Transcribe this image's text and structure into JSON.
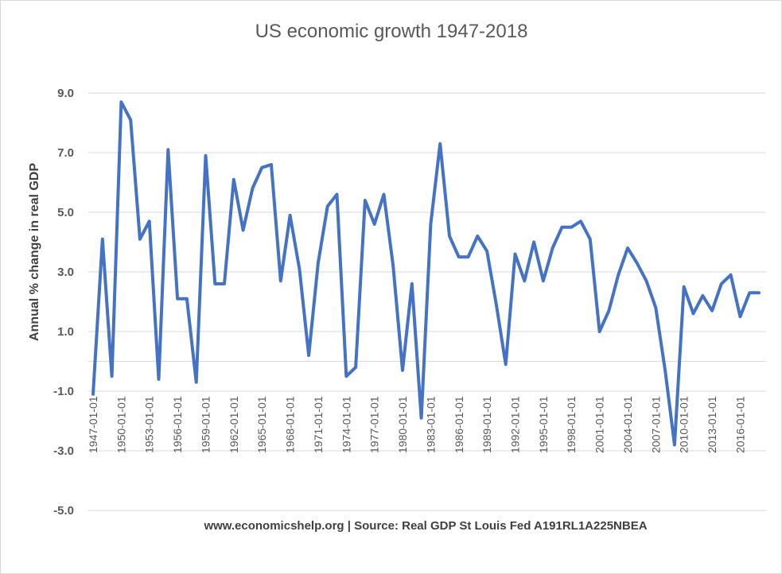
{
  "chart_data": {
    "type": "line",
    "title": "US economic growth 1947-2018",
    "xlabel": "",
    "ylabel": "Annual % change in real GDP",
    "note": "www.economicshelp.org | Source: Real GDP St Louis Fed A191RL1A225NBEA",
    "ylim": [
      -5,
      10
    ],
    "yticks": [
      -5.0,
      -3.0,
      -1.0,
      1.0,
      3.0,
      5.0,
      7.0,
      9.0
    ],
    "x_start_year": 1947,
    "x_tick_labels": [
      "1947-01-01",
      "1950-01-01",
      "1953-01-01",
      "1956-01-01",
      "1959-01-01",
      "1962-01-01",
      "1965-01-01",
      "1968-01-01",
      "1971-01-01",
      "1974-01-01",
      "1977-01-01",
      "1980-01-01",
      "1983-01-01",
      "1986-01-01",
      "1989-01-01",
      "1992-01-01",
      "1995-01-01",
      "1998-01-01",
      "2001-01-01",
      "2004-01-01",
      "2007-01-01",
      "2010-01-01",
      "2013-01-01",
      "2016-01-01"
    ],
    "grid": true,
    "legend": "none",
    "series": [
      {
        "color": "#4472C4",
        "x": [
          "1947",
          "1948",
          "1949",
          "1950",
          "1951",
          "1952",
          "1953",
          "1954",
          "1955",
          "1956",
          "1957",
          "1958",
          "1959",
          "1960",
          "1961",
          "1962",
          "1963",
          "1964",
          "1965",
          "1966",
          "1967",
          "1968",
          "1969",
          "1970",
          "1971",
          "1972",
          "1973",
          "1974",
          "1975",
          "1976",
          "1977",
          "1978",
          "1979",
          "1980",
          "1981",
          "1982",
          "1983",
          "1984",
          "1985",
          "1986",
          "1987",
          "1988",
          "1989",
          "1990",
          "1991",
          "1992",
          "1993",
          "1994",
          "1995",
          "1996",
          "1997",
          "1998",
          "1999",
          "2000",
          "2001",
          "2002",
          "2003",
          "2004",
          "2005",
          "2006",
          "2007",
          "2008",
          "2009",
          "2010",
          "2011",
          "2012",
          "2013",
          "2014",
          "2015",
          "2016",
          "2017",
          "2018"
        ],
        "values": [
          -1.1,
          4.1,
          -0.5,
          8.7,
          8.1,
          4.1,
          4.7,
          -0.6,
          7.1,
          2.1,
          2.1,
          -0.7,
          6.9,
          2.6,
          2.6,
          6.1,
          4.4,
          5.8,
          6.5,
          6.6,
          2.7,
          4.9,
          3.1,
          0.2,
          3.3,
          5.2,
          5.6,
          -0.5,
          -0.2,
          5.4,
          4.6,
          5.6,
          3.2,
          -0.3,
          2.6,
          -1.9,
          4.6,
          7.3,
          4.2,
          3.5,
          3.5,
          4.2,
          3.7,
          1.9,
          -0.1,
          3.6,
          2.7,
          4.0,
          2.7,
          3.8,
          4.5,
          4.5,
          4.7,
          4.1,
          1.0,
          1.7,
          2.9,
          3.8,
          3.3,
          2.7,
          1.8,
          -0.3,
          -2.8,
          2.5,
          1.6,
          2.2,
          1.7,
          2.6,
          2.9,
          1.5,
          2.3,
          2.3
        ]
      }
    ]
  }
}
